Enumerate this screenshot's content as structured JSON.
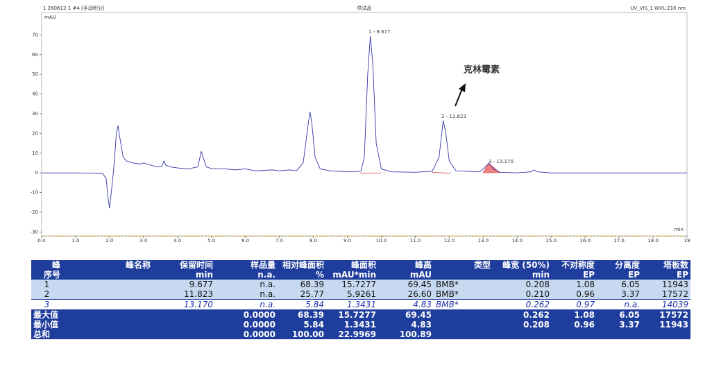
{
  "chart_data": {
    "type": "line",
    "header_left": "1 260612-1 #4 [手动积分]",
    "title": "供试品",
    "header_right": "UV_VIS_1 WVL:210 nm",
    "ylabel": "mAU",
    "xlabel": "min",
    "color": "#3535a8",
    "x": [
      0.0,
      1.0,
      1.8,
      1.9,
      1.95,
      2.0,
      2.05,
      2.1,
      2.15,
      2.2,
      2.25,
      2.3,
      2.4,
      2.5,
      2.7,
      2.9,
      3.0,
      3.2,
      3.4,
      3.55,
      3.6,
      3.65,
      3.8,
      4.0,
      4.3,
      4.6,
      4.7,
      4.75,
      4.85,
      5.0,
      5.4,
      5.7,
      6.0,
      6.3,
      6.8,
      7.0,
      7.3,
      7.5,
      7.7,
      7.85,
      7.9,
      7.95,
      8.05,
      8.2,
      8.5,
      9.0,
      9.4,
      9.5,
      9.6,
      9.677,
      9.75,
      9.85,
      10.0,
      10.3,
      11.0,
      11.5,
      11.7,
      11.823,
      11.9,
      12.0,
      12.2,
      12.9,
      13.0,
      13.17,
      13.3,
      13.5,
      14.0,
      14.4,
      14.5,
      14.6,
      15.0,
      19.0
    ],
    "values": [
      0,
      0,
      -0.3,
      -3,
      -12,
      -18,
      -10,
      -2,
      8,
      20,
      24,
      18,
      8,
      6,
      5,
      4.5,
      5,
      4,
      3,
      3.5,
      6,
      4,
      3,
      2.5,
      2,
      3,
      11,
      8,
      3,
      2.2,
      2,
      1.5,
      2,
      1,
      1.5,
      1,
      1.5,
      1,
      5,
      25,
      31,
      26,
      8,
      2,
      1,
      0.5,
      0.8,
      8,
      50,
      69.45,
      55,
      15,
      2,
      0.5,
      0.3,
      0.8,
      8,
      26.6,
      20,
      6,
      1,
      0.5,
      2,
      4.83,
      2,
      0.3,
      0,
      0.5,
      1.5,
      0.5,
      0,
      0
    ],
    "xlim": [
      0,
      19
    ],
    "ylim": [
      -32,
      80
    ],
    "xticks": [
      {
        "value": 0,
        "label": "0.0"
      },
      {
        "value": 1,
        "label": "1.0"
      },
      {
        "value": 2,
        "label": "2.0"
      },
      {
        "value": 3,
        "label": "3.0"
      },
      {
        "value": 4,
        "label": "4.0"
      },
      {
        "value": 5,
        "label": "5.0"
      },
      {
        "value": 6,
        "label": "6.0"
      },
      {
        "value": 7,
        "label": "7.0"
      },
      {
        "value": 8,
        "label": "8.0"
      },
      {
        "value": 9,
        "label": "9.0"
      },
      {
        "value": 10,
        "label": "10.0"
      },
      {
        "value": 11,
        "label": "11.0"
      },
      {
        "value": 12,
        "label": "12.0"
      },
      {
        "value": 13,
        "label": "13.0"
      },
      {
        "value": 14,
        "label": "14.0"
      },
      {
        "value": 15,
        "label": "15.0"
      },
      {
        "value": 16,
        "label": "16.0"
      },
      {
        "value": 17,
        "label": "17.0"
      },
      {
        "value": 18,
        "label": "18.0"
      },
      {
        "value": 19,
        "label": "19"
      }
    ],
    "yticks": [
      -30,
      -20,
      -10,
      0,
      10,
      20,
      30,
      40,
      50,
      60,
      70
    ],
    "annotations": [
      "1 - 9.677",
      "2 - 11.823",
      "3 - 13.170",
      "克林霉素"
    ]
  },
  "table": {
    "header": [
      [
        "峰",
        "峰名称",
        "保留时间",
        "样品量",
        "相对峰面积",
        "峰面积",
        "峰高",
        "类型",
        "峰宽 (50%)",
        "不对称度",
        "分离度",
        "塔板数"
      ],
      [
        "序号",
        null,
        "min",
        "n.a.",
        "%",
        "mAU*min",
        "mAU",
        null,
        "min",
        "EP",
        "EP",
        "EP"
      ]
    ],
    "rows": [
      [
        "1",
        null,
        "9.677",
        "n.a.",
        "68.39",
        "15.7277",
        "69.45",
        "BMB*",
        "0.208",
        "1.08",
        "6.05",
        "11943"
      ],
      [
        "2",
        null,
        "11.823",
        "n.a.",
        "25.77",
        "5.9261",
        "26.60",
        "BMB*",
        "0.210",
        "0.96",
        "3.37",
        "17572"
      ],
      [
        "3",
        null,
        "13.170",
        "n.a.",
        "5.84",
        "1.3431",
        "4.83",
        "BMB*",
        "0.262",
        "0.97",
        "n.a.",
        "14039"
      ]
    ],
    "summary": [
      [
        "最大值",
        null,
        null,
        "0.0000",
        "68.39",
        "15.7277",
        "69.45",
        null,
        "0.262",
        "1.08",
        "6.05",
        "17572"
      ],
      [
        "最小值",
        null,
        null,
        "0.0000",
        "5.84",
        "1.3431",
        "4.83",
        null,
        "0.208",
        "0.96",
        "3.37",
        "11943"
      ],
      [
        "总和",
        null,
        null,
        "0.0000",
        "100.00",
        "22.9969",
        "100.89",
        null,
        null,
        null,
        null,
        null
      ]
    ]
  }
}
